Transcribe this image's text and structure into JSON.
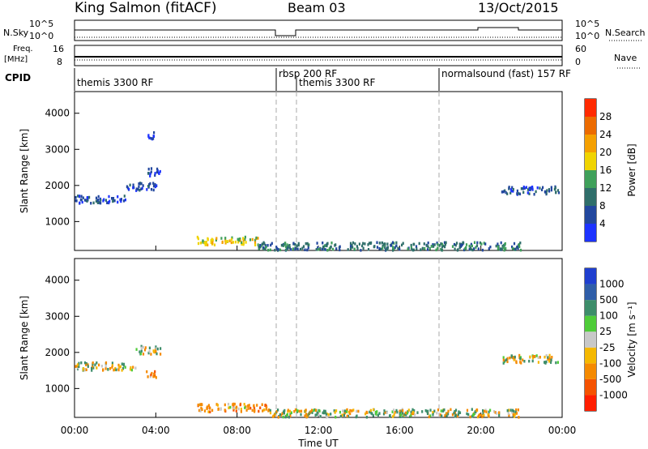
{
  "header": {
    "station": "King Salmon (fitACF)",
    "beam": "Beam 03",
    "date": "13/Oct/2015"
  },
  "top_panels": {
    "nsky_label": "N.Sky",
    "nsky_ticks": [
      "10^5",
      "10^0"
    ],
    "nsky_right_ticks": [
      "10^5",
      "10^0"
    ],
    "nsearch_label": "N.Search",
    "freq_label": "Freq.",
    "freq_unit": "[MHz]",
    "freq_ticks": [
      "16",
      "8"
    ],
    "nave_ticks": [
      "60",
      "0"
    ],
    "nave_label": "Nave",
    "cpid_label": "CPID",
    "cpid_segments": [
      {
        "label": "themis 3300 RF",
        "start": 0.0
      },
      {
        "label": "rbsp 200 RF",
        "start": 10.0
      },
      {
        "label": "themis 3300 RF",
        "start": 11.0
      },
      {
        "label": "normalsound (fast) 157 RF",
        "start": 18.0
      }
    ]
  },
  "x_axis": {
    "label": "Time UT",
    "ticks": [
      "00:00",
      "04:00",
      "08:00",
      "12:00",
      "16:00",
      "20:00",
      "00:00"
    ]
  },
  "power_colorbar": {
    "title": "Power [dB]",
    "ticks": [
      "4",
      "8",
      "12",
      "16",
      "20",
      "24",
      "28"
    ],
    "colors": [
      "#1d33ff",
      "#22479e",
      "#2f6e6a",
      "#3fa05a",
      "#f0d400",
      "#f5a000",
      "#ec6b00",
      "#ff2a00"
    ]
  },
  "velocity_colorbar": {
    "title": "Velocity [m s⁻¹]",
    "ticks": [
      "1000",
      "500",
      "100",
      "25",
      "-25",
      "-100",
      "-500",
      "-1000"
    ],
    "colors": [
      "#1f3fcf",
      "#2f5ea8",
      "#3d8d6a",
      "#4fcc39",
      "#c8c8c8",
      "#f5b800",
      "#f58a00",
      "#f55200",
      "#ff1e00"
    ]
  },
  "chart_data": [
    {
      "type": "heatmap",
      "title": "",
      "xlabel": "Time UT",
      "ylabel": "Slant Range [km]",
      "xlim": [
        0,
        24
      ],
      "ylim": [
        200,
        4600
      ],
      "yticks": [
        "1000",
        "2000",
        "3000",
        "4000"
      ],
      "colorbar_label": "Power [dB]",
      "echo_regions": [
        {
          "t_start": 0.0,
          "t_end": 2.5,
          "range_km": 1650,
          "value": 6
        },
        {
          "t_start": 2.5,
          "t_end": 4.0,
          "range_km": 2000,
          "value": 6
        },
        {
          "t_start": 3.5,
          "t_end": 4.2,
          "range_km": 2400,
          "value": 5
        },
        {
          "t_start": 3.6,
          "t_end": 4.0,
          "range_km": 3400,
          "value": 4
        },
        {
          "t_start": 6.0,
          "t_end": 9.0,
          "range_km": 500,
          "value": 18
        },
        {
          "t_start": 9.0,
          "t_end": 22.0,
          "range_km": 350,
          "value": 10
        },
        {
          "t_start": 21.0,
          "t_end": 23.8,
          "range_km": 1900,
          "value": 6
        }
      ]
    },
    {
      "type": "heatmap",
      "title": "",
      "xlabel": "Time UT",
      "ylabel": "Slant Range [km]",
      "xlim": [
        0,
        24
      ],
      "ylim": [
        200,
        4600
      ],
      "yticks": [
        "1000",
        "2000",
        "3000",
        "4000"
      ],
      "colorbar_label": "Velocity [m s⁻¹]",
      "echo_regions": [
        {
          "t_start": 0.0,
          "t_end": 3.0,
          "range_km": 1650,
          "value": 0
        },
        {
          "t_start": 3.0,
          "t_end": 4.2,
          "range_km": 2100,
          "value": 0
        },
        {
          "t_start": 3.5,
          "t_end": 4.0,
          "range_km": 1400,
          "value": -300
        },
        {
          "t_start": 6.0,
          "t_end": 9.5,
          "range_km": 500,
          "value": -300
        },
        {
          "t_start": 9.5,
          "t_end": 22.0,
          "range_km": 350,
          "value": 50
        },
        {
          "t_start": 21.0,
          "t_end": 23.8,
          "range_km": 1850,
          "value": -50
        }
      ]
    }
  ]
}
